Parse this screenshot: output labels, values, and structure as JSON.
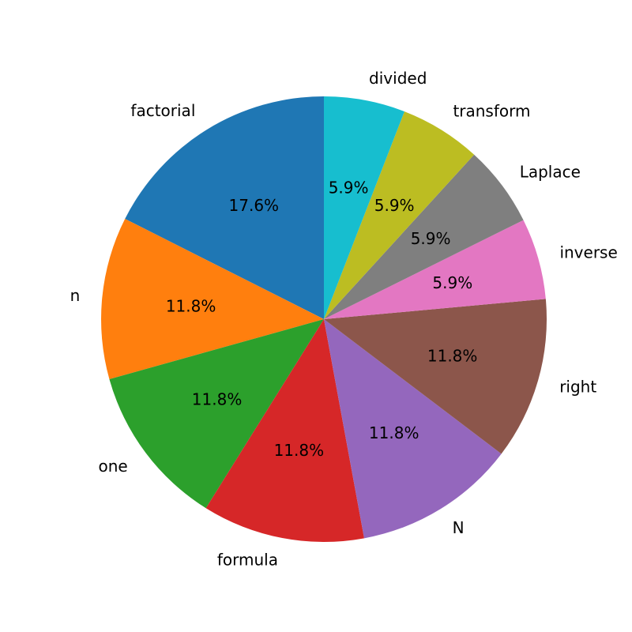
{
  "chart_data": {
    "type": "pie",
    "start_angle_deg": 90,
    "direction": "counterclockwise",
    "autopct_format": "%.1f%%",
    "slices": [
      {
        "label": "factorial",
        "value": 17.6,
        "pct_label": "17.6%",
        "color": "#1f77b4"
      },
      {
        "label": "n",
        "value": 11.8,
        "pct_label": "11.8%",
        "color": "#ff7f0e"
      },
      {
        "label": "one",
        "value": 11.8,
        "pct_label": "11.8%",
        "color": "#2ca02c"
      },
      {
        "label": "formula",
        "value": 11.8,
        "pct_label": "11.8%",
        "color": "#d62728"
      },
      {
        "label": "N",
        "value": 11.8,
        "pct_label": "11.8%",
        "color": "#9467bd"
      },
      {
        "label": "right",
        "value": 11.8,
        "pct_label": "11.8%",
        "color": "#8c564b"
      },
      {
        "label": "inverse",
        "value": 5.9,
        "pct_label": "5.9%",
        "color": "#e377c2"
      },
      {
        "label": "Laplace",
        "value": 5.9,
        "pct_label": "5.9%",
        "color": "#7f7f7f"
      },
      {
        "label": "transform",
        "value": 5.9,
        "pct_label": "5.9%",
        "color": "#bcbd22"
      },
      {
        "label": "divided",
        "value": 5.9,
        "pct_label": "5.9%",
        "color": "#17becf"
      }
    ]
  }
}
